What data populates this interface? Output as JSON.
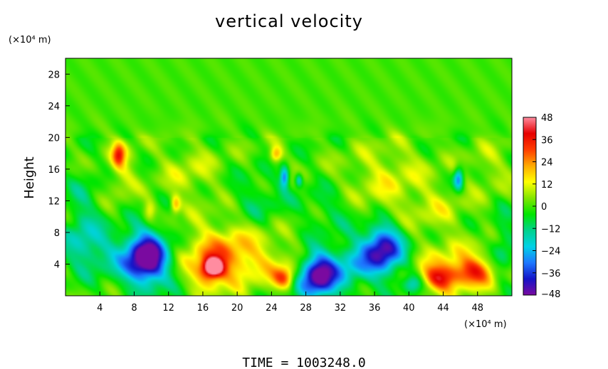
{
  "chart_data": {
    "type": "heatmap",
    "title": "vertical velocity",
    "ylabel": "Height",
    "xlabel": "",
    "x_unit_label": "(×10⁴ m)",
    "y_unit_label": "(×10⁴ m)",
    "xlim": [
      0,
      52
    ],
    "ylim": [
      0,
      30
    ],
    "x_ticks": [
      4,
      8,
      12,
      16,
      20,
      24,
      28,
      32,
      36,
      40,
      44,
      48
    ],
    "y_ticks": [
      4,
      8,
      12,
      16,
      20,
      24,
      28
    ],
    "colorbar": {
      "range": [
        -48,
        48
      ],
      "ticks": [
        48,
        36,
        24,
        12,
        0,
        -12,
        -24,
        -36,
        -48
      ],
      "colors": [
        "#7a0aa0",
        "#1414c8",
        "#1e78ff",
        "#00d2e6",
        "#00d28c",
        "#00e600",
        "#82e600",
        "#ffff00",
        "#ffaa00",
        "#ff3c00",
        "#e60000",
        "#ff8ca0"
      ]
    },
    "features": [
      {
        "x": 9.5,
        "y": 4.8,
        "value": -48,
        "sx": 1.6,
        "sy": 2.2
      },
      {
        "x": 10.5,
        "y": 4.5,
        "value": -10,
        "sx": 3.8,
        "sy": 3.2
      },
      {
        "x": 7.5,
        "y": 4.0,
        "value": -6,
        "sx": 2.0,
        "sy": 1.5
      },
      {
        "x": 17.2,
        "y": 3.6,
        "value": 48,
        "sx": 0.8,
        "sy": 0.8
      },
      {
        "x": 17.5,
        "y": 4.2,
        "value": 16,
        "sx": 2.8,
        "sy": 2.2
      },
      {
        "x": 18.5,
        "y": 5.8,
        "value": 14,
        "sx": 4.5,
        "sy": 2.8
      },
      {
        "x": 16.5,
        "y": 2.2,
        "value": 12,
        "sx": 1.2,
        "sy": 1.2
      },
      {
        "x": 25.5,
        "y": 2.2,
        "value": 28,
        "sx": 0.9,
        "sy": 1.0
      },
      {
        "x": 24.5,
        "y": 3.5,
        "value": 8,
        "sx": 2.4,
        "sy": 1.6
      },
      {
        "x": 29.5,
        "y": 2.8,
        "value": -38,
        "sx": 1.4,
        "sy": 2.0
      },
      {
        "x": 29.5,
        "y": 2.0,
        "value": -16,
        "sx": 2.8,
        "sy": 1.8
      },
      {
        "x": 37.0,
        "y": 6.0,
        "value": -36,
        "sx": 1.5,
        "sy": 2.0
      },
      {
        "x": 36.5,
        "y": 5.0,
        "value": -14,
        "sx": 3.2,
        "sy": 2.5
      },
      {
        "x": 33.5,
        "y": 4.0,
        "value": -10,
        "sx": 1.5,
        "sy": 1.5
      },
      {
        "x": 40.5,
        "y": 1.5,
        "value": -18,
        "sx": 0.8,
        "sy": 0.8
      },
      {
        "x": 43.5,
        "y": 2.2,
        "value": 30,
        "sx": 1.4,
        "sy": 1.1
      },
      {
        "x": 47.5,
        "y": 3.0,
        "value": 26,
        "sx": 1.6,
        "sy": 1.2
      },
      {
        "x": 45.5,
        "y": 3.0,
        "value": 10,
        "sx": 3.5,
        "sy": 2.0
      },
      {
        "x": 43.0,
        "y": 5.5,
        "value": 6,
        "sx": 4.0,
        "sy": 2.0
      },
      {
        "x": 6.2,
        "y": 17.8,
        "value": 26,
        "sx": 0.5,
        "sy": 1.0
      },
      {
        "x": 6.5,
        "y": 16.0,
        "value": 10,
        "sx": 1.2,
        "sy": 2.5
      },
      {
        "x": 24.5,
        "y": 17.8,
        "value": 22,
        "sx": 0.5,
        "sy": 0.7
      },
      {
        "x": 25.5,
        "y": 15.0,
        "value": -30,
        "sx": 0.35,
        "sy": 0.9
      },
      {
        "x": 27.2,
        "y": 14.6,
        "value": -20,
        "sx": 0.3,
        "sy": 0.6
      },
      {
        "x": 45.8,
        "y": 14.8,
        "value": -30,
        "sx": 0.4,
        "sy": 1.0
      },
      {
        "x": 12.8,
        "y": 11.5,
        "value": 20,
        "sx": 0.4,
        "sy": 0.8
      },
      {
        "x": 9.8,
        "y": 10.7,
        "value": 14,
        "sx": 0.5,
        "sy": 0.9
      },
      {
        "x": 14.5,
        "y": 15.5,
        "value": 8,
        "sx": 2.5,
        "sy": 2.5
      },
      {
        "x": 38.0,
        "y": 16.0,
        "value": 8,
        "sx": 3.5,
        "sy": 2.5
      },
      {
        "x": 36.0,
        "y": 12.0,
        "value": 6,
        "sx": 3.0,
        "sy": 2.5
      },
      {
        "x": 2.0,
        "y": 10.0,
        "value": -10,
        "sx": 1.5,
        "sy": 4.0
      },
      {
        "x": 3.0,
        "y": 6.0,
        "value": -12,
        "sx": 2.5,
        "sy": 2.0
      },
      {
        "x": 51.0,
        "y": 6.0,
        "value": -12,
        "sx": 1.0,
        "sy": 3.0
      },
      {
        "x": 22.5,
        "y": 12.0,
        "value": -8,
        "sx": 2.5,
        "sy": 2.5
      },
      {
        "x": 31.0,
        "y": 11.0,
        "value": -8,
        "sx": 2.5,
        "sy": 2.0
      },
      {
        "x": 43.0,
        "y": 11.0,
        "value": 8,
        "sx": 2.5,
        "sy": 2.0
      },
      {
        "x": 49.5,
        "y": 16.0,
        "value": 6,
        "sx": 2.0,
        "sy": 2.5
      }
    ],
    "footer": "TIME  =  1003248.0",
    "grid": false,
    "legend": "colorbar-right"
  }
}
